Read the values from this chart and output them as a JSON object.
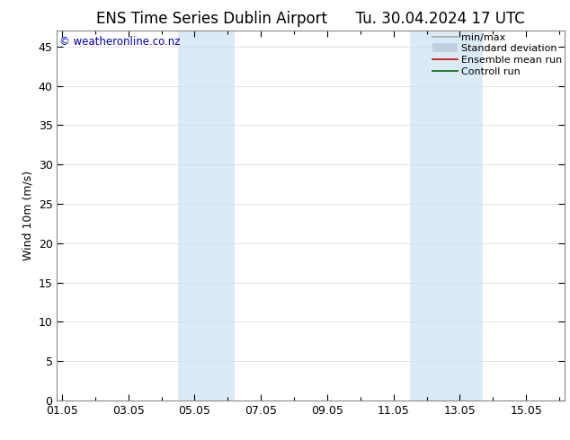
{
  "title_left": "ENS Time Series Dublin Airport",
  "title_right": "Tu. 30.04.2024 17 UTC",
  "watermark": "© weatheronline.co.nz",
  "ylabel": "Wind 10m (m/s)",
  "ylim": [
    0,
    47
  ],
  "yticks": [
    0,
    5,
    10,
    15,
    20,
    25,
    30,
    35,
    40,
    45
  ],
  "xtick_labels": [
    "01.05",
    "03.05",
    "05.05",
    "07.05",
    "09.05",
    "11.05",
    "13.05",
    "15.05"
  ],
  "xtick_positions": [
    0,
    2,
    4,
    6,
    8,
    10,
    12,
    14
  ],
  "xlim": [
    -0.15,
    15.15
  ],
  "background_color": "#ffffff",
  "shaded_bands": [
    {
      "x_start": 3.5,
      "x_end": 5.2
    },
    {
      "x_start": 10.5,
      "x_end": 12.7
    }
  ],
  "band_color": "#daeaf7",
  "legend_items": [
    {
      "label": "min/max",
      "color": "#aaaaaa",
      "lw": 1.2,
      "linestyle": "-"
    },
    {
      "label": "Standard deviation",
      "color": "#c0d0e0",
      "lw": 7,
      "linestyle": "-"
    },
    {
      "label": "Ensemble mean run",
      "color": "#cc0000",
      "lw": 1.2,
      "linestyle": "-"
    },
    {
      "label": "Controll run",
      "color": "#006600",
      "lw": 1.2,
      "linestyle": "-"
    }
  ],
  "grid_color": "#dddddd",
  "border_color": "#888888",
  "tick_color": "#000000",
  "title_fontsize": 12,
  "label_fontsize": 9,
  "tick_fontsize": 9,
  "legend_fontsize": 8,
  "watermark_color": "#0000bb",
  "watermark_fontsize": 8.5
}
